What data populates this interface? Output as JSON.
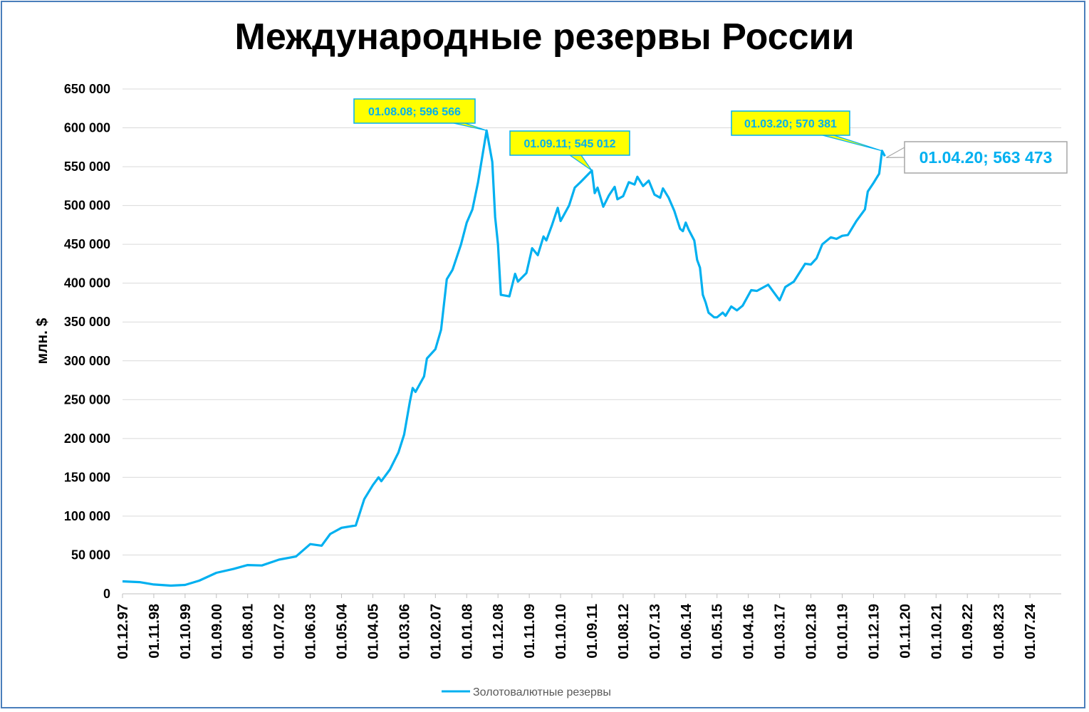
{
  "chart_data": {
    "type": "line",
    "title": "Международные резервы России",
    "ylabel": "млн. $",
    "xlabel": "",
    "ylim": [
      0,
      650000
    ],
    "yticks": [
      0,
      50000,
      100000,
      150000,
      200000,
      250000,
      300000,
      350000,
      400000,
      450000,
      500000,
      550000,
      600000,
      650000
    ],
    "ytick_labels": [
      "0",
      "50 000",
      "100 000",
      "150 000",
      "200 000",
      "250 000",
      "300 000",
      "350 000",
      "400 000",
      "450 000",
      "500 000",
      "550 000",
      "600 000",
      "650 000"
    ],
    "xticks": [
      "01.12.97",
      "01.11.98",
      "01.10.99",
      "01.09.00",
      "01.08.01",
      "01.07.02",
      "01.06.03",
      "01.05.04",
      "01.04.05",
      "01.03.06",
      "01.02.07",
      "01.01.08",
      "01.12.08",
      "01.11.09",
      "01.10.10",
      "01.09.11",
      "01.08.12",
      "01.07.13",
      "01.06.14",
      "01.05.15",
      "01.04.16",
      "01.03.17",
      "01.02.18",
      "01.01.19",
      "01.12.19",
      "01.11.20",
      "01.10.21",
      "01.09.22",
      "01.08.23",
      "01.07.24"
    ],
    "grid": true,
    "legend_position": "bottom",
    "series": [
      {
        "name": "Золотовалютные резервы",
        "color": "#00b0f0",
        "points": [
          [
            "01.12.97",
            16000
          ],
          [
            "01.06.98",
            15000
          ],
          [
            "01.11.98",
            12000
          ],
          [
            "01.05.99",
            10500
          ],
          [
            "01.10.99",
            11500
          ],
          [
            "01.03.00",
            17000
          ],
          [
            "01.09.00",
            27000
          ],
          [
            "01.03.01",
            32000
          ],
          [
            "01.08.01",
            37000
          ],
          [
            "01.01.02",
            36500
          ],
          [
            "01.07.02",
            44000
          ],
          [
            "01.01.03",
            48000
          ],
          [
            "01.06.03",
            64000
          ],
          [
            "01.10.03",
            62000
          ],
          [
            "01.01.04",
            77000
          ],
          [
            "01.05.04",
            85000
          ],
          [
            "01.10.04",
            88000
          ],
          [
            "01.01.05",
            122000
          ],
          [
            "01.04.05",
            140000
          ],
          [
            "01.06.05",
            150000
          ],
          [
            "01.07.05",
            145000
          ],
          [
            "01.10.05",
            160000
          ],
          [
            "01.01.06",
            182000
          ],
          [
            "01.03.06",
            205000
          ],
          [
            "01.05.06",
            247000
          ],
          [
            "01.06.06",
            265000
          ],
          [
            "01.07.06",
            260000
          ],
          [
            "01.10.06",
            280000
          ],
          [
            "01.11.06",
            303000
          ],
          [
            "01.02.07",
            315000
          ],
          [
            "01.04.07",
            340000
          ],
          [
            "01.06.07",
            405000
          ],
          [
            "01.08.07",
            417000
          ],
          [
            "01.11.07",
            450000
          ],
          [
            "01.01.08",
            478000
          ],
          [
            "01.03.08",
            495000
          ],
          [
            "01.05.08",
            530000
          ],
          [
            "01.08.08",
            596566
          ],
          [
            "01.10.08",
            556000
          ],
          [
            "01.11.08",
            485000
          ],
          [
            "01.12.08",
            450000
          ],
          [
            "01.01.09",
            385000
          ],
          [
            "01.04.09",
            383000
          ],
          [
            "01.06.09",
            412000
          ],
          [
            "01.07.09",
            402000
          ],
          [
            "01.10.09",
            413000
          ],
          [
            "01.12.09",
            445000
          ],
          [
            "01.02.10",
            436000
          ],
          [
            "01.04.10",
            460000
          ],
          [
            "01.05.10",
            455000
          ],
          [
            "01.07.10",
            475000
          ],
          [
            "01.09.10",
            497000
          ],
          [
            "01.10.10",
            480000
          ],
          [
            "01.01.11",
            500000
          ],
          [
            "01.03.11",
            523000
          ],
          [
            "01.05.11",
            530000
          ],
          [
            "01.09.11",
            545012
          ],
          [
            "01.10.11",
            516000
          ],
          [
            "01.11.11",
            523000
          ],
          [
            "01.01.12",
            498500
          ],
          [
            "01.03.12",
            513000
          ],
          [
            "01.05.12",
            524000
          ],
          [
            "01.06.12",
            508000
          ],
          [
            "01.08.12",
            512000
          ],
          [
            "01.10.12",
            530000
          ],
          [
            "01.12.12",
            527000
          ],
          [
            "01.01.13",
            537000
          ],
          [
            "01.03.13",
            525000
          ],
          [
            "01.05.13",
            532000
          ],
          [
            "01.07.13",
            514000
          ],
          [
            "01.09.13",
            510000
          ],
          [
            "01.10.13",
            522000
          ],
          [
            "01.12.13",
            510000
          ],
          [
            "01.02.14",
            493000
          ],
          [
            "01.04.14",
            470000
          ],
          [
            "01.05.14",
            467000
          ],
          [
            "01.06.14",
            478000
          ],
          [
            "01.07.14",
            469000
          ],
          [
            "01.09.14",
            455000
          ],
          [
            "01.10.14",
            430000
          ],
          [
            "01.11.14",
            420000
          ],
          [
            "01.12.14",
            385000
          ],
          [
            "01.01.15",
            375000
          ],
          [
            "01.02.15",
            362000
          ],
          [
            "01.04.15",
            356000
          ],
          [
            "01.05.15",
            356000
          ],
          [
            "01.07.15",
            362000
          ],
          [
            "01.08.15",
            358000
          ],
          [
            "01.10.15",
            370000
          ],
          [
            "01.12.15",
            365000
          ],
          [
            "01.02.16",
            371000
          ],
          [
            "01.05.16",
            391000
          ],
          [
            "01.07.16",
            390000
          ],
          [
            "01.11.16",
            398000
          ],
          [
            "01.01.17",
            388000
          ],
          [
            "01.03.17",
            378000
          ],
          [
            "01.05.17",
            395000
          ],
          [
            "01.08.17",
            402000
          ],
          [
            "01.12.17",
            425000
          ],
          [
            "01.02.18",
            424000
          ],
          [
            "01.04.18",
            432000
          ],
          [
            "01.06.18",
            450000
          ],
          [
            "01.09.18",
            459000
          ],
          [
            "01.11.18",
            457000
          ],
          [
            "01.01.19",
            461000
          ],
          [
            "01.03.19",
            462000
          ],
          [
            "01.06.19",
            480000
          ],
          [
            "01.09.19",
            495000
          ],
          [
            "01.10.19",
            518000
          ],
          [
            "01.12.19",
            529000
          ],
          [
            "01.02.20",
            541000
          ],
          [
            "01.03.20",
            570381
          ],
          [
            "01.04.20",
            563473
          ]
        ]
      }
    ],
    "annotations": [
      {
        "label": "01.08.08; 596 566",
        "x": "01.08.08",
        "y": 596566
      },
      {
        "label": "01.09.11; 545 012",
        "x": "01.09.11",
        "y": 545012
      },
      {
        "label": "01.03.20; 570 381",
        "x": "01.03.20",
        "y": 570381
      },
      {
        "label": "01.04.20; 563 473",
        "x": "01.04.20",
        "y": 563473
      }
    ]
  }
}
